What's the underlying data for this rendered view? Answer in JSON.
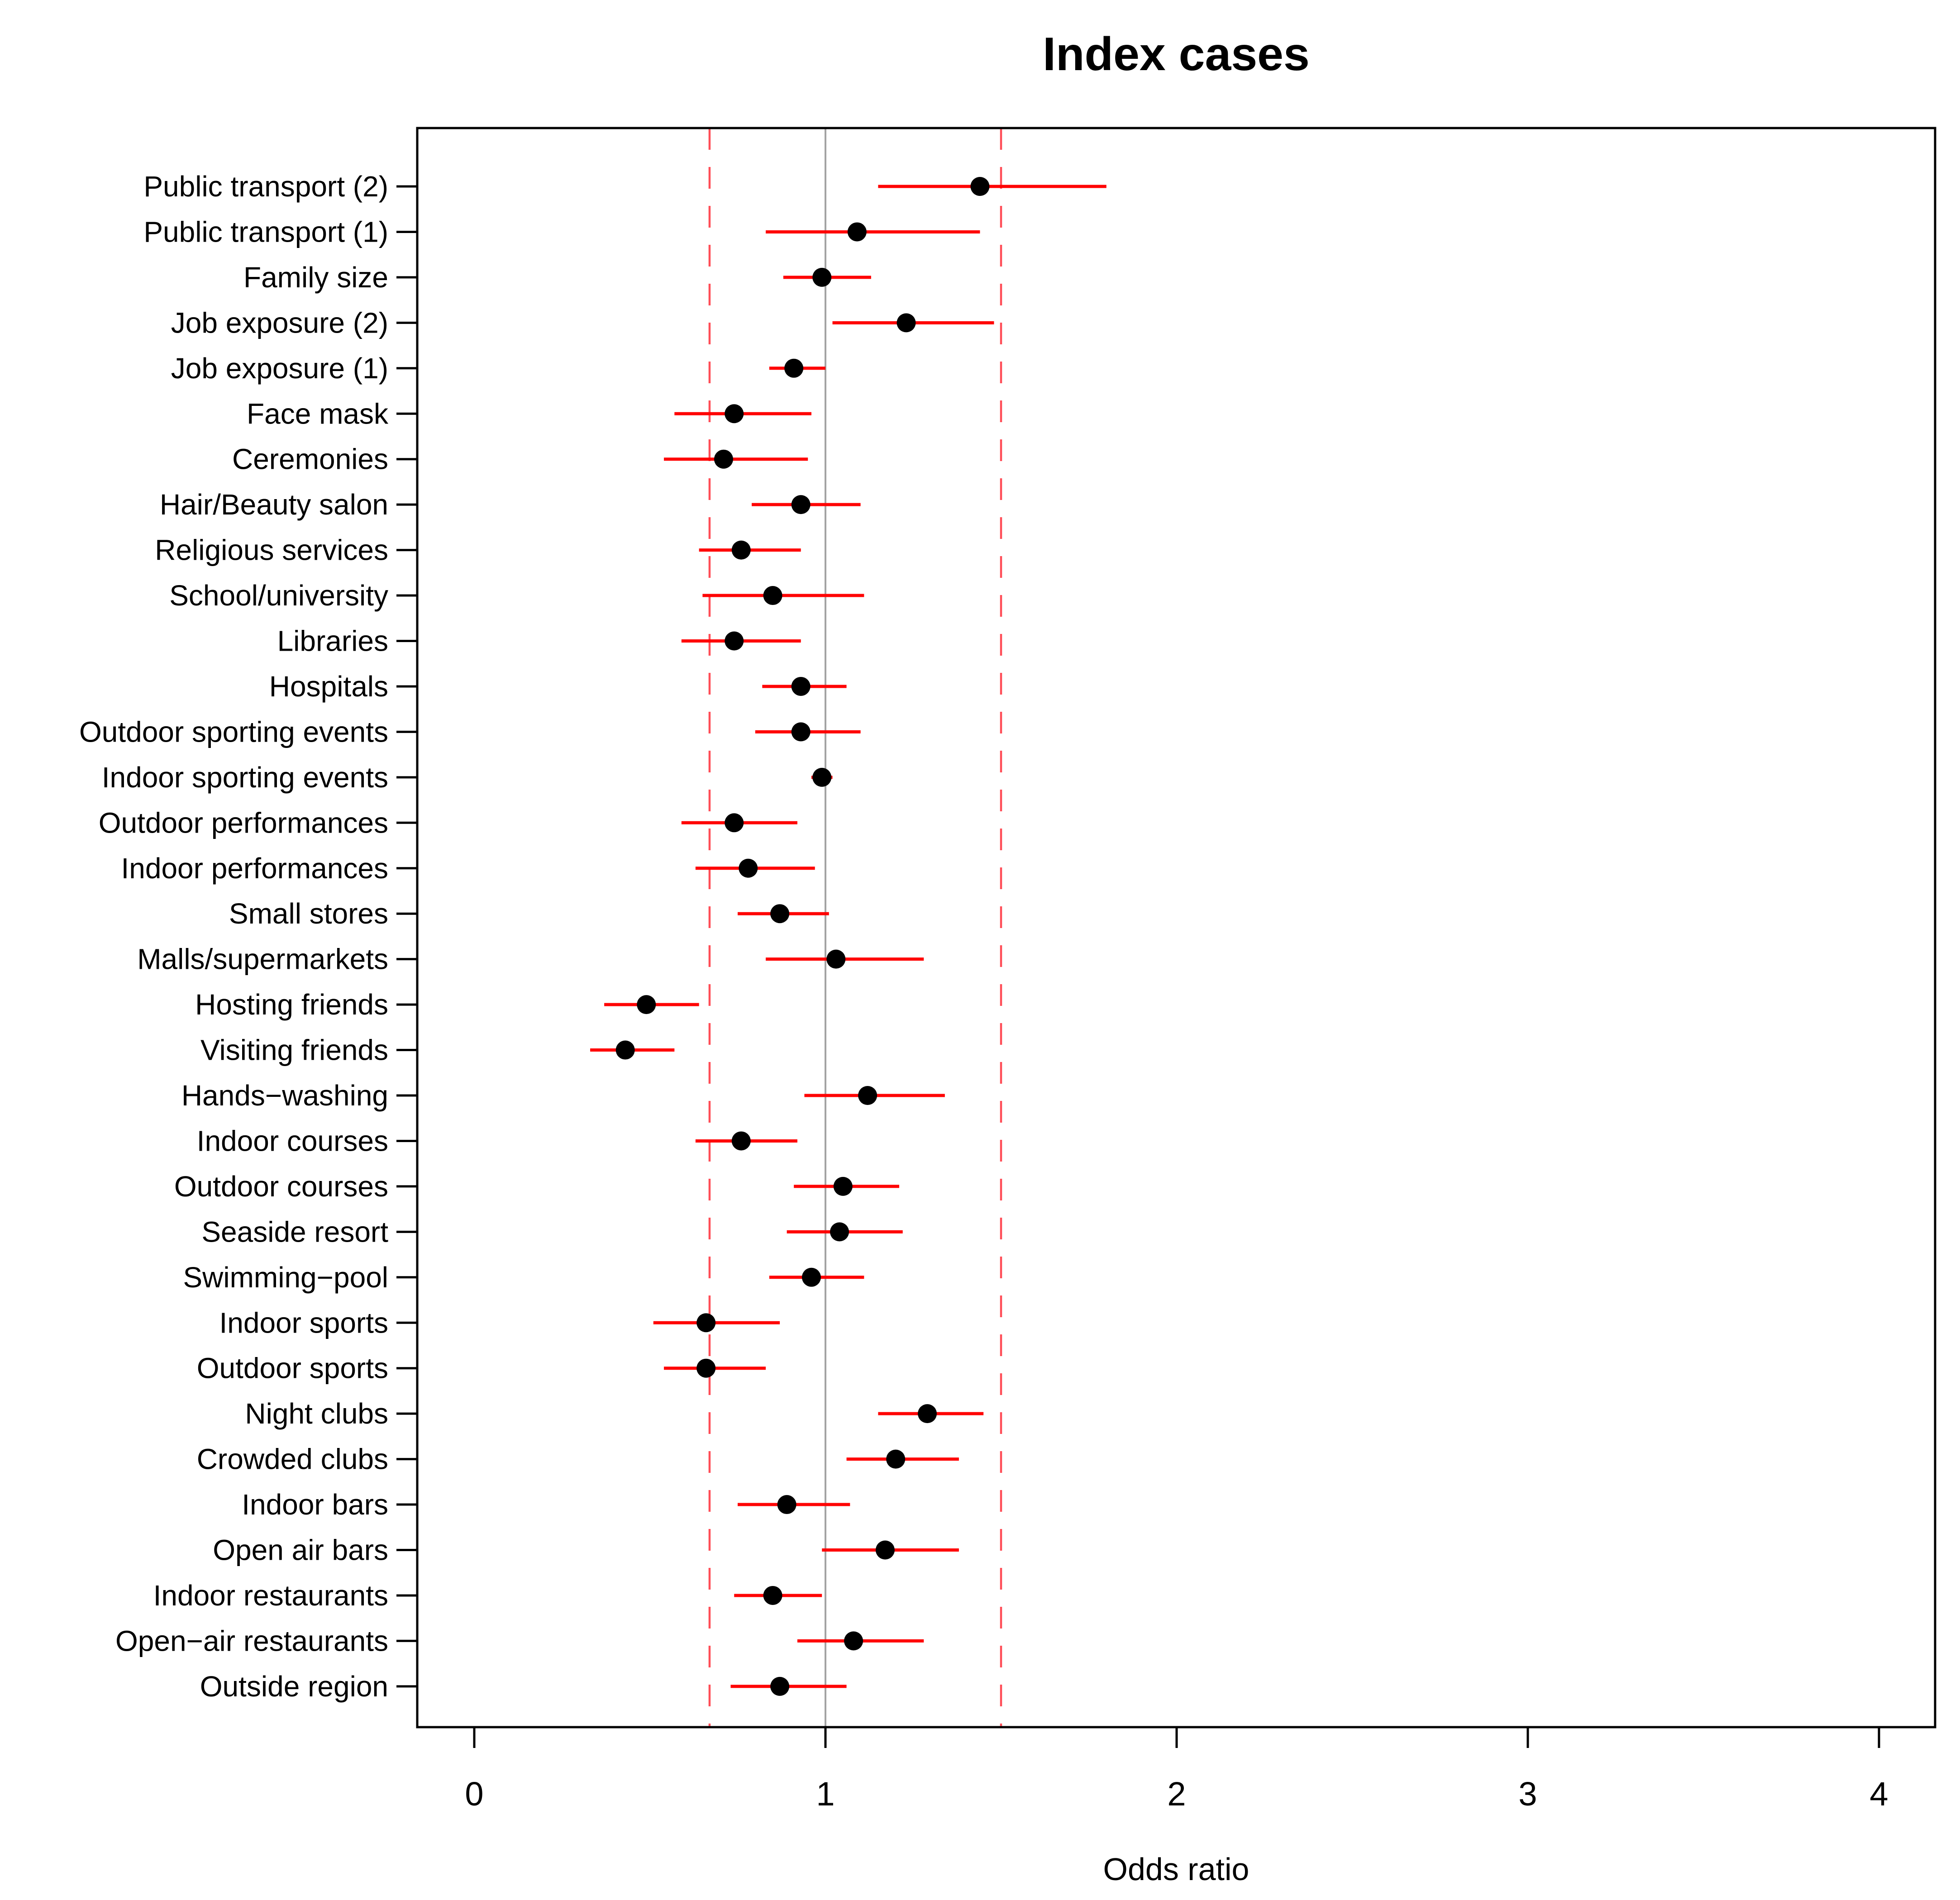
{
  "chart_data": {
    "type": "scatter",
    "subtype": "forest-plot",
    "title": "Index cases",
    "xlabel": "Odds ratio",
    "ylabel": "",
    "x_ticks": [
      0,
      1,
      2,
      3,
      4
    ],
    "xlim": [
      -0.16,
      4.15
    ],
    "grid": "off",
    "legend": "none",
    "reference_lines": {
      "null_line": 1.0,
      "dashed": [
        0.67,
        1.5
      ]
    },
    "categories": [
      "Public transport (2)",
      "Public transport (1)",
      "Family size",
      "Job exposure (2)",
      "Job exposure (1)",
      "Face mask",
      "Ceremonies",
      "Hair/Beauty salon",
      "Religious services",
      "School/university",
      "Libraries",
      "Hospitals",
      "Outdoor sporting events",
      "Indoor sporting events",
      "Outdoor performances",
      "Indoor performances",
      "Small stores",
      "Malls/supermarkets",
      "Hosting friends",
      "Visiting friends",
      "Hands−washing",
      "Indoor courses",
      "Outdoor courses",
      "Seaside resort",
      "Swimming−pool",
      "Indoor sports",
      "Outdoor sports",
      "Night clubs",
      "Crowded clubs",
      "Indoor bars",
      "Open air bars",
      "Indoor restaurants",
      "Open−air restaurants",
      "Outside region"
    ],
    "series": [
      {
        "label": "Public transport (2)",
        "or": 1.44,
        "ci_low": 1.15,
        "ci_high": 1.8
      },
      {
        "label": "Public transport (1)",
        "or": 1.09,
        "ci_low": 0.83,
        "ci_high": 1.44
      },
      {
        "label": "Family size",
        "or": 0.99,
        "ci_low": 0.88,
        "ci_high": 1.13
      },
      {
        "label": "Job exposure (2)",
        "or": 1.23,
        "ci_low": 1.02,
        "ci_high": 1.48
      },
      {
        "label": "Job exposure (1)",
        "or": 0.91,
        "ci_low": 0.84,
        "ci_high": 1.0
      },
      {
        "label": "Face mask",
        "or": 0.74,
        "ci_low": 0.57,
        "ci_high": 0.96
      },
      {
        "label": "Ceremonies",
        "or": 0.71,
        "ci_low": 0.54,
        "ci_high": 0.95
      },
      {
        "label": "Hair/Beauty salon",
        "or": 0.93,
        "ci_low": 0.79,
        "ci_high": 1.1
      },
      {
        "label": "Religious services",
        "or": 0.76,
        "ci_low": 0.64,
        "ci_high": 0.93
      },
      {
        "label": "School/university",
        "or": 0.85,
        "ci_low": 0.65,
        "ci_high": 1.11
      },
      {
        "label": "Libraries",
        "or": 0.74,
        "ci_low": 0.59,
        "ci_high": 0.93
      },
      {
        "label": "Hospitals",
        "or": 0.93,
        "ci_low": 0.82,
        "ci_high": 1.06
      },
      {
        "label": "Outdoor sporting events",
        "or": 0.93,
        "ci_low": 0.8,
        "ci_high": 1.1
      },
      {
        "label": "Indoor sporting events",
        "or": 0.99,
        "ci_low": 0.96,
        "ci_high": 1.02
      },
      {
        "label": "Outdoor performances",
        "or": 0.74,
        "ci_low": 0.59,
        "ci_high": 0.92
      },
      {
        "label": "Indoor performances",
        "or": 0.78,
        "ci_low": 0.63,
        "ci_high": 0.97
      },
      {
        "label": "Small stores",
        "or": 0.87,
        "ci_low": 0.75,
        "ci_high": 1.01
      },
      {
        "label": "Malls/supermarkets",
        "or": 1.03,
        "ci_low": 0.83,
        "ci_high": 1.28
      },
      {
        "label": "Hosting friends",
        "or": 0.49,
        "ci_low": 0.37,
        "ci_high": 0.64
      },
      {
        "label": "Visiting friends",
        "or": 0.43,
        "ci_low": 0.33,
        "ci_high": 0.57
      },
      {
        "label": "Hands−washing",
        "or": 1.12,
        "ci_low": 0.94,
        "ci_high": 1.34
      },
      {
        "label": "Indoor courses",
        "or": 0.76,
        "ci_low": 0.63,
        "ci_high": 0.92
      },
      {
        "label": "Outdoor courses",
        "or": 1.05,
        "ci_low": 0.91,
        "ci_high": 1.21
      },
      {
        "label": "Seaside resort",
        "or": 1.04,
        "ci_low": 0.89,
        "ci_high": 1.22
      },
      {
        "label": "Swimming−pool",
        "or": 0.96,
        "ci_low": 0.84,
        "ci_high": 1.11
      },
      {
        "label": "Indoor sports",
        "or": 0.66,
        "ci_low": 0.51,
        "ci_high": 0.87
      },
      {
        "label": "Outdoor sports",
        "or": 0.66,
        "ci_low": 0.54,
        "ci_high": 0.83
      },
      {
        "label": "Night clubs",
        "or": 1.29,
        "ci_low": 1.15,
        "ci_high": 1.45
      },
      {
        "label": "Crowded clubs",
        "or": 1.2,
        "ci_low": 1.06,
        "ci_high": 1.38
      },
      {
        "label": "Indoor bars",
        "or": 0.89,
        "ci_low": 0.75,
        "ci_high": 1.07
      },
      {
        "label": "Open air bars",
        "or": 1.17,
        "ci_low": 0.99,
        "ci_high": 1.38
      },
      {
        "label": "Indoor restaurants",
        "or": 0.85,
        "ci_low": 0.74,
        "ci_high": 0.99
      },
      {
        "label": "Open−air restaurants",
        "or": 1.08,
        "ci_low": 0.92,
        "ci_high": 1.28
      },
      {
        "label": "Outside region",
        "or": 0.87,
        "ci_low": 0.73,
        "ci_high": 1.06
      }
    ]
  },
  "colors": {
    "ci_line": "#ff0000",
    "point": "#000000",
    "dashed_reference": "#ff4d57",
    "null_reference": "#a3a3a3",
    "axis": "#000000",
    "text": "#000000",
    "background": "#ffffff"
  }
}
